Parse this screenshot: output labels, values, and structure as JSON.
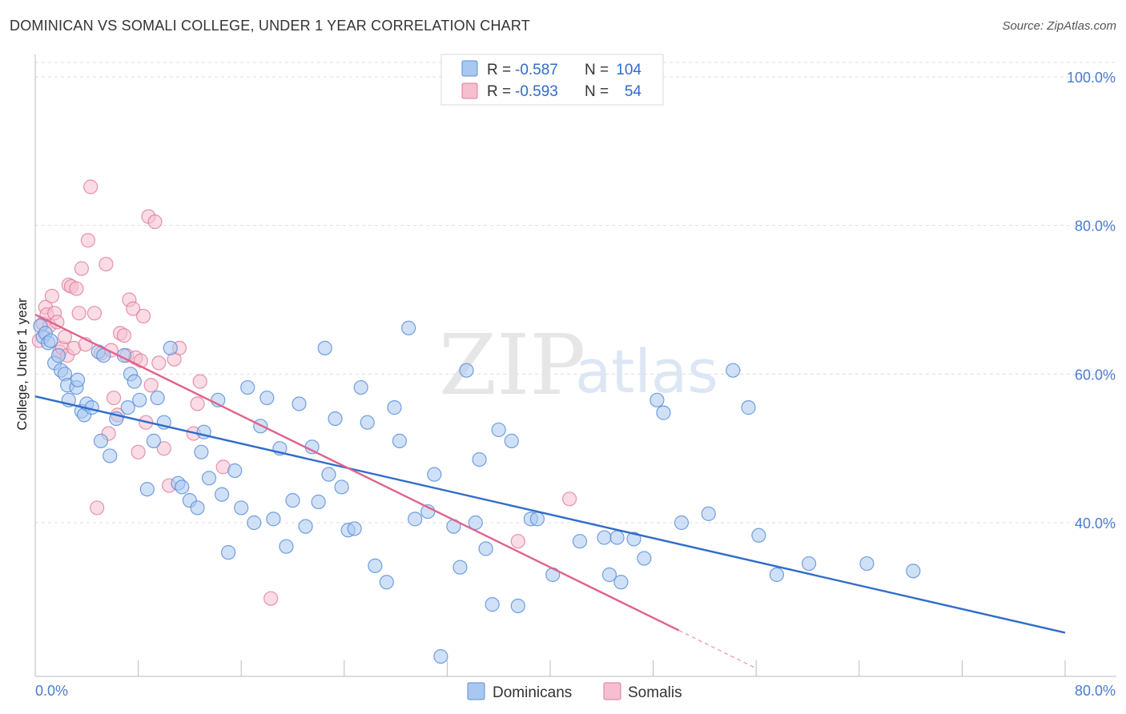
{
  "header": {
    "title": "DOMINICAN VS SOMALI COLLEGE, UNDER 1 YEAR CORRELATION CHART",
    "source": "Source: ZipAtlas.com"
  },
  "watermark": {
    "zip": "ZIP",
    "atlas": "atlas"
  },
  "legend": {
    "rows": [
      {
        "r_label": "R =",
        "r_value": "-0.587",
        "n_label": "N =",
        "n_value": "104",
        "color": "#a9c8f0",
        "stroke": "#5b8fd9"
      },
      {
        "r_label": "R =",
        "r_value": "-0.593",
        "n_label": "N =",
        "n_value": "54",
        "color": "#f5bfd0",
        "stroke": "#e07a9a"
      }
    ]
  },
  "bottom_legend": [
    "Dominicans",
    "Somalis"
  ],
  "colors": {
    "dominican_fill": "#a9c8f0",
    "dominican_stroke": "#5b8fd9",
    "dominican_line": "#2f6cc9",
    "somali_fill": "#f5bfd0",
    "somali_stroke": "#e07a9a",
    "somali_line": "#e0628e"
  },
  "chart_data": {
    "type": "scatter",
    "title": "DOMINICAN VS SOMALI COLLEGE, UNDER 1 YEAR CORRELATION CHART",
    "xlabel": "",
    "ylabel": "College, Under 1 year",
    "xlim": [
      0,
      80
    ],
    "ylim": [
      20,
      102
    ],
    "x_tick_labels": [
      "0.0%",
      "80.0%"
    ],
    "y_ticks": [
      40,
      60,
      80,
      100
    ],
    "y_tick_labels": [
      "40.0%",
      "60.0%",
      "80.0%",
      "100.0%"
    ],
    "grid": true,
    "legend_position": "top-center",
    "series": [
      {
        "name": "Dominicans",
        "r": -0.587,
        "n": 104,
        "trend": {
          "x": [
            0,
            80
          ],
          "y": [
            57.0,
            25.2
          ]
        },
        "points": [
          [
            0.4,
            66.5
          ],
          [
            0.6,
            65.0
          ],
          [
            0.8,
            65.5
          ],
          [
            1.0,
            64.2
          ],
          [
            1.2,
            64.5
          ],
          [
            1.5,
            61.5
          ],
          [
            1.8,
            62.5
          ],
          [
            2.0,
            60.5
          ],
          [
            2.3,
            60.0
          ],
          [
            2.5,
            58.5
          ],
          [
            2.6,
            56.5
          ],
          [
            3.2,
            58.2
          ],
          [
            3.3,
            59.2
          ],
          [
            3.6,
            55.0
          ],
          [
            3.8,
            54.5
          ],
          [
            4.0,
            56.0
          ],
          [
            4.4,
            55.5
          ],
          [
            4.9,
            63.0
          ],
          [
            5.1,
            51.0
          ],
          [
            5.3,
            62.5
          ],
          [
            5.8,
            49.0
          ],
          [
            6.3,
            54.0
          ],
          [
            6.9,
            62.5
          ],
          [
            7.2,
            55.5
          ],
          [
            7.4,
            60.0
          ],
          [
            7.7,
            59.0
          ],
          [
            8.1,
            56.5
          ],
          [
            8.7,
            44.5
          ],
          [
            9.2,
            51.0
          ],
          [
            9.5,
            56.8
          ],
          [
            10.0,
            53.5
          ],
          [
            10.5,
            63.5
          ],
          [
            11.1,
            45.3
          ],
          [
            11.4,
            44.8
          ],
          [
            12.0,
            43.0
          ],
          [
            12.6,
            42.0
          ],
          [
            12.9,
            49.5
          ],
          [
            13.1,
            52.2
          ],
          [
            13.5,
            46.0
          ],
          [
            14.2,
            56.5
          ],
          [
            14.5,
            43.8
          ],
          [
            15.0,
            36.0
          ],
          [
            15.5,
            47.0
          ],
          [
            16.0,
            42.0
          ],
          [
            16.5,
            58.2
          ],
          [
            17.0,
            40.0
          ],
          [
            17.5,
            53.0
          ],
          [
            18.0,
            56.8
          ],
          [
            18.5,
            40.5
          ],
          [
            19.0,
            50.0
          ],
          [
            19.5,
            36.8
          ],
          [
            20.0,
            43.0
          ],
          [
            20.5,
            56.0
          ],
          [
            21.0,
            39.5
          ],
          [
            21.5,
            50.2
          ],
          [
            22.0,
            42.8
          ],
          [
            22.5,
            63.5
          ],
          [
            22.8,
            46.5
          ],
          [
            23.3,
            54.0
          ],
          [
            23.8,
            44.8
          ],
          [
            24.3,
            39.0
          ],
          [
            24.8,
            39.2
          ],
          [
            25.3,
            58.2
          ],
          [
            25.8,
            53.5
          ],
          [
            26.4,
            34.2
          ],
          [
            27.3,
            32.0
          ],
          [
            27.9,
            55.5
          ],
          [
            28.3,
            51.0
          ],
          [
            29.0,
            66.2
          ],
          [
            29.5,
            40.5
          ],
          [
            30.5,
            41.5
          ],
          [
            31.0,
            46.5
          ],
          [
            31.5,
            22.0
          ],
          [
            32.5,
            39.5
          ],
          [
            33.0,
            34.0
          ],
          [
            33.5,
            60.5
          ],
          [
            34.2,
            40.0
          ],
          [
            34.5,
            48.5
          ],
          [
            35.0,
            36.5
          ],
          [
            35.5,
            29.0
          ],
          [
            36.0,
            52.5
          ],
          [
            37.0,
            51.0
          ],
          [
            37.5,
            28.8
          ],
          [
            38.5,
            40.5
          ],
          [
            39.0,
            40.5
          ],
          [
            40.2,
            33.0
          ],
          [
            42.3,
            37.5
          ],
          [
            44.2,
            38.0
          ],
          [
            44.6,
            33.0
          ],
          [
            45.2,
            38.0
          ],
          [
            45.5,
            32.0
          ],
          [
            46.5,
            37.8
          ],
          [
            47.3,
            35.2
          ],
          [
            48.3,
            56.5
          ],
          [
            48.8,
            54.8
          ],
          [
            50.2,
            40.0
          ],
          [
            52.3,
            41.2
          ],
          [
            54.2,
            60.5
          ],
          [
            55.4,
            55.5
          ],
          [
            56.2,
            38.3
          ],
          [
            57.6,
            33.0
          ],
          [
            60.1,
            34.5
          ],
          [
            64.6,
            34.5
          ],
          [
            68.2,
            33.5
          ]
        ]
      },
      {
        "name": "Somalis",
        "r": -0.593,
        "n": 54,
        "trend": {
          "x": [
            0,
            50
          ],
          "y": [
            68.0,
            25.5
          ]
        },
        "trend_dashed": {
          "x": [
            50,
            56
          ],
          "y": [
            25.5,
            20.4
          ]
        },
        "points": [
          [
            0.3,
            64.5
          ],
          [
            0.6,
            66.8
          ],
          [
            0.8,
            69.0
          ],
          [
            0.9,
            68.0
          ],
          [
            1.1,
            66.5
          ],
          [
            1.3,
            70.5
          ],
          [
            1.5,
            68.2
          ],
          [
            1.7,
            67.0
          ],
          [
            1.9,
            63.0
          ],
          [
            2.1,
            63.5
          ],
          [
            2.3,
            65.0
          ],
          [
            2.5,
            62.5
          ],
          [
            2.6,
            72.0
          ],
          [
            2.8,
            71.8
          ],
          [
            3.0,
            63.5
          ],
          [
            3.2,
            71.5
          ],
          [
            3.4,
            68.2
          ],
          [
            3.6,
            74.2
          ],
          [
            3.9,
            64.0
          ],
          [
            4.1,
            78.0
          ],
          [
            4.3,
            85.2
          ],
          [
            4.6,
            68.2
          ],
          [
            4.8,
            42.0
          ],
          [
            5.1,
            62.8
          ],
          [
            5.5,
            74.8
          ],
          [
            5.7,
            52.0
          ],
          [
            5.9,
            63.2
          ],
          [
            6.1,
            56.8
          ],
          [
            6.4,
            54.5
          ],
          [
            6.6,
            65.5
          ],
          [
            6.9,
            65.2
          ],
          [
            7.1,
            62.5
          ],
          [
            7.3,
            70.0
          ],
          [
            7.6,
            68.8
          ],
          [
            7.8,
            62.2
          ],
          [
            8.0,
            49.5
          ],
          [
            8.2,
            61.8
          ],
          [
            8.4,
            67.8
          ],
          [
            8.6,
            53.5
          ],
          [
            8.8,
            81.2
          ],
          [
            9.0,
            58.5
          ],
          [
            9.3,
            80.5
          ],
          [
            9.6,
            61.5
          ],
          [
            10.0,
            50.0
          ],
          [
            10.4,
            45.0
          ],
          [
            10.8,
            62.0
          ],
          [
            11.2,
            63.5
          ],
          [
            12.3,
            52.0
          ],
          [
            12.6,
            56.0
          ],
          [
            12.8,
            59.0
          ],
          [
            14.6,
            47.5
          ],
          [
            18.3,
            29.8
          ],
          [
            37.5,
            37.5
          ],
          [
            41.5,
            43.2
          ]
        ]
      }
    ]
  }
}
